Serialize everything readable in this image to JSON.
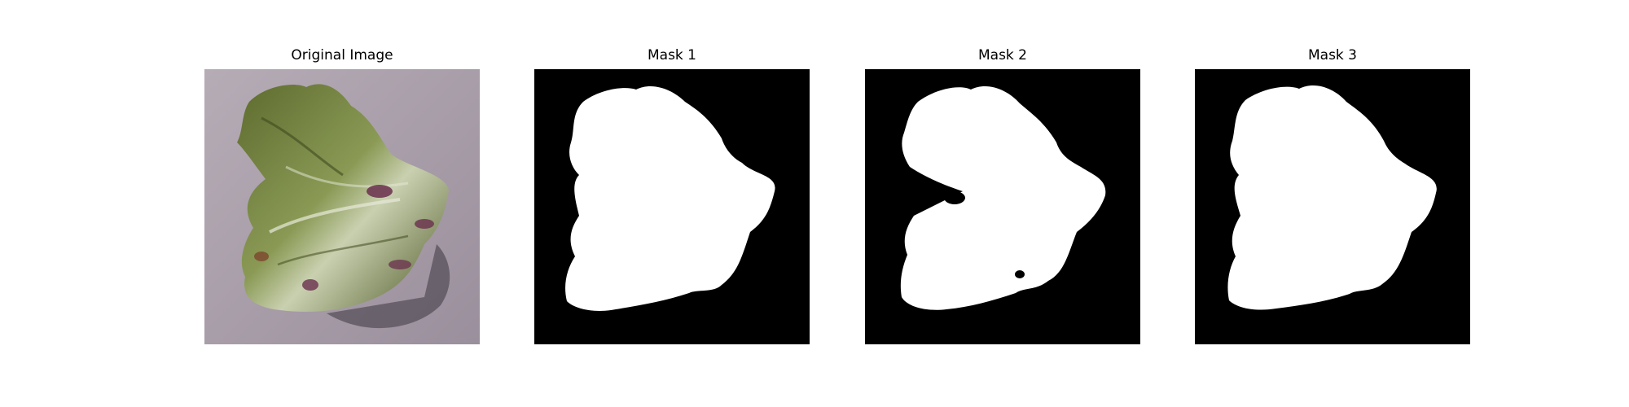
{
  "panels": [
    {
      "title": "Original Image",
      "kind": "photo",
      "subject": "lettuce-leaf"
    },
    {
      "title": "Mask 1",
      "kind": "mask"
    },
    {
      "title": "Mask 2",
      "kind": "mask"
    },
    {
      "title": "Mask 3",
      "kind": "mask"
    }
  ],
  "colors": {
    "background": "#ffffff",
    "mask_background": "#000000",
    "mask_foreground": "#ffffff",
    "photo_background": "#a69aa6",
    "leaf_dark_green": "#4c5a2a",
    "leaf_green": "#7e8f48",
    "leaf_light": "#d6dcc4",
    "leaf_purple": "#6a2f4e"
  }
}
